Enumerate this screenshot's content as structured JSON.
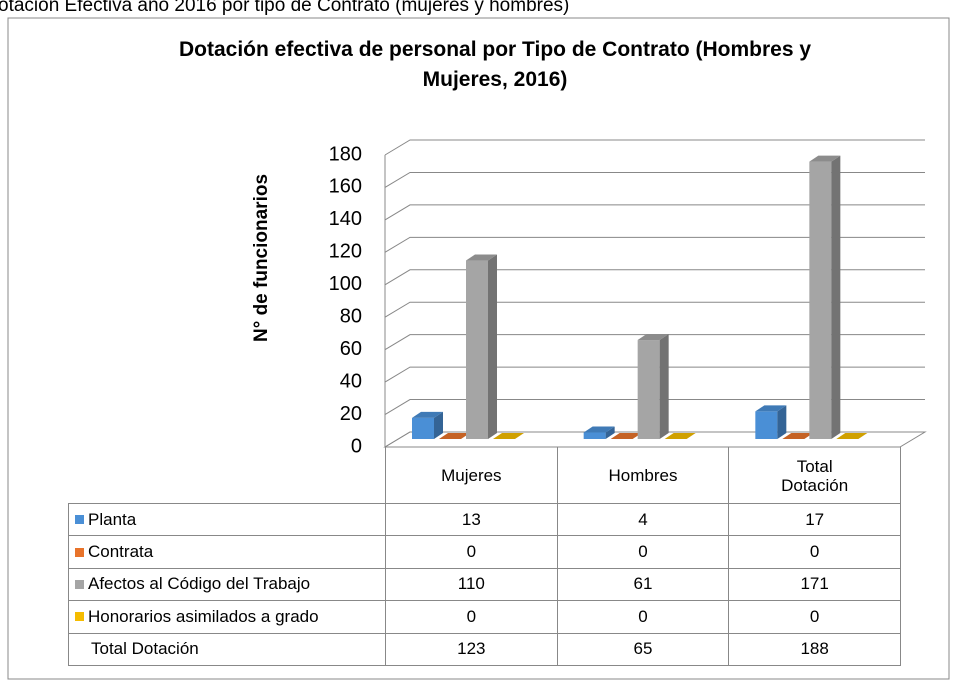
{
  "caption": "otación Efectiva año 2016 por tipo de Contrato (mujeres y hombres)",
  "chart_data": {
    "type": "bar3d",
    "title": "Dotación efectiva de personal por Tipo de Contrato (Hombres y Mujeres, 2016)",
    "y_label": "N° de funcionarios",
    "categories": [
      "Mujeres",
      "Hombres",
      "Total Dotación"
    ],
    "series": [
      {
        "name": "Planta",
        "color": "#4a8fd6",
        "values": [
          13,
          4,
          17
        ]
      },
      {
        "name": "Contrata",
        "color": "#e8732a",
        "values": [
          0,
          0,
          0
        ]
      },
      {
        "name": "Afectos al Código del Trabajo",
        "color": "#a5a5a5",
        "values": [
          110,
          61,
          171
        ]
      },
      {
        "name": "Honorarios asimilados a grado",
        "color": "#f5bc00",
        "values": [
          0,
          0,
          0
        ]
      }
    ],
    "table_total": {
      "name": "Total Dotación",
      "values": [
        123,
        65,
        188
      ]
    },
    "ylim": [
      0,
      180
    ],
    "yticks": [
      0,
      20,
      40,
      60,
      80,
      100,
      120,
      140,
      160,
      180
    ],
    "grid": true
  }
}
